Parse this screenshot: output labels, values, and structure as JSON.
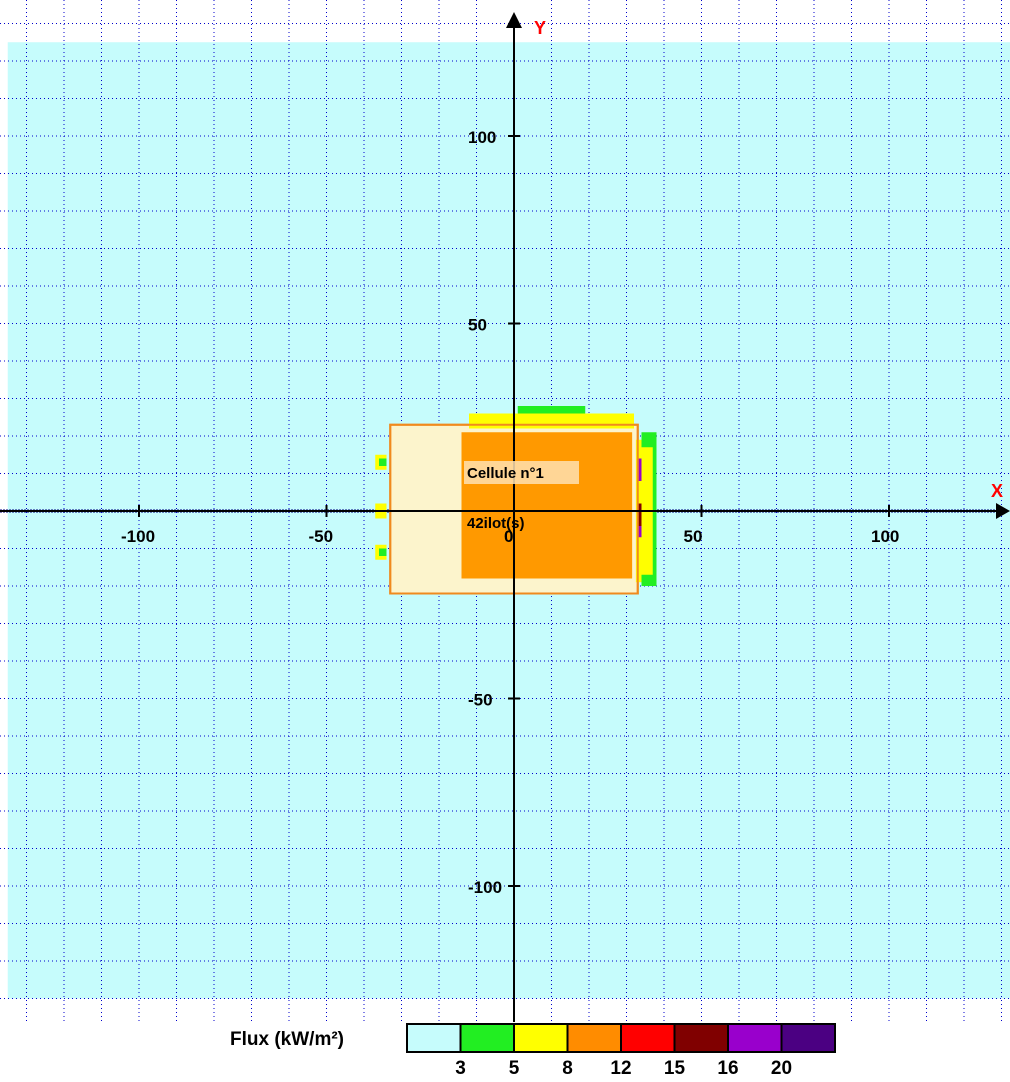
{
  "chart_data": {
    "type": "heatmap",
    "title": "",
    "axes": {
      "x": {
        "name": "X",
        "range": [
          -135,
          135
        ],
        "ticks": [
          -100,
          -50,
          0,
          50,
          100
        ]
      },
      "y": {
        "name": "Y",
        "range": [
          -135,
          135
        ],
        "ticks": [
          -100,
          -50,
          50,
          100
        ]
      },
      "grid": true
    },
    "shaded_area": {
      "x": [
        -135,
        133
      ],
      "y": [
        -130,
        125
      ]
    },
    "cell": {
      "label": "Cellule n°1",
      "sublabel": "42ilot(s)",
      "outline": {
        "x": [
          -33,
          33
        ],
        "y": [
          -22,
          23
        ]
      },
      "light_zone": {
        "x": [
          -30,
          -14
        ],
        "y": [
          -18,
          22
        ]
      }
    },
    "flux_zones": [
      {
        "x": [
          -14,
          31.5
        ],
        "y": [
          -18,
          21
        ],
        "level": "12"
      },
      {
        "x": [
          -12,
          32
        ],
        "y": [
          22,
          26
        ],
        "level": "8"
      },
      {
        "x": [
          1,
          19
        ],
        "y": [
          26,
          28
        ],
        "level": "3"
      },
      {
        "x": [
          34,
          38
        ],
        "y": [
          -20,
          21
        ],
        "level": "3"
      },
      {
        "x": [
          34,
          37
        ],
        "y": [
          -17,
          17
        ],
        "level": "8"
      },
      {
        "x": [
          32.5,
          34
        ],
        "y": [
          -19,
          19
        ],
        "level": "8"
      },
      {
        "x": [
          33,
          34
        ],
        "y": [
          8,
          14
        ],
        "level": "16"
      },
      {
        "x": [
          33,
          34
        ],
        "y": [
          -7,
          -2
        ],
        "level": "16"
      },
      {
        "x": [
          33,
          34
        ],
        "y": [
          -4,
          2
        ],
        "level": "15"
      },
      {
        "x": [
          -37,
          -34
        ],
        "y": [
          11,
          15
        ],
        "level": "8"
      },
      {
        "x": [
          -37,
          -34
        ],
        "y": [
          -2,
          2
        ],
        "level": "8"
      },
      {
        "x": [
          -37,
          -34
        ],
        "y": [
          -13,
          -9
        ],
        "level": "8"
      },
      {
        "x": [
          -36,
          -34
        ],
        "y": [
          12,
          14
        ],
        "level": "3"
      },
      {
        "x": [
          -36,
          -34
        ],
        "y": [
          -12,
          -10
        ],
        "level": "3"
      }
    ],
    "legend": {
      "title": "Flux (kW/m²)",
      "thresholds": [
        "3",
        "5",
        "8",
        "12",
        "15",
        "16",
        "20"
      ],
      "colors": [
        "#c6fcfc",
        "#22ee22",
        "#ffff00",
        "#ff8c00",
        "#ff0000",
        "#800000",
        "#9900cc",
        "#4b0082"
      ]
    }
  },
  "colors": {
    "shaded": "#c6fcfc",
    "grid": "#0000cc",
    "axis": "#000000",
    "outline": "#f08a1e",
    "light_zone": "#fcf4cc",
    "zone_orange": "#ff9900",
    "zone_yellow": "#ffff00",
    "zone_green": "#22ee22",
    "zone_red": "#ff0000",
    "zone_dark_red": "#800000",
    "zone_purple": "#9900cc",
    "label_box": "#ffe0b0"
  }
}
